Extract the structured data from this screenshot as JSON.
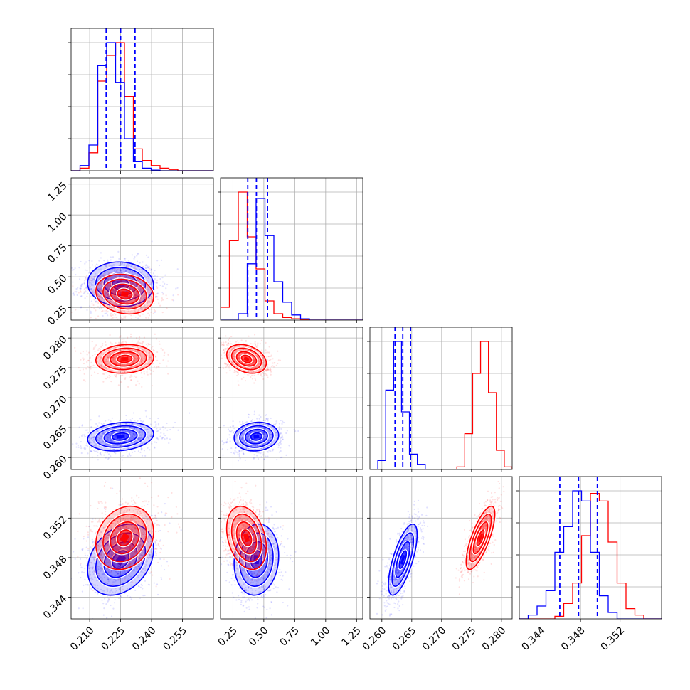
{
  "chart_data": {
    "type": "corner",
    "grid": true,
    "colors": {
      "blue": "#0000ff",
      "red": "#ff0000",
      "grid": "#b0b0b0",
      "axes": "#000000"
    },
    "params": [
      {
        "id": "p1",
        "range": [
          0.201,
          0.27
        ],
        "ticks": [
          "0.210",
          "0.225",
          "0.240",
          "0.255"
        ],
        "tick_values": [
          0.21,
          0.225,
          0.24,
          0.255
        ]
      },
      {
        "id": "p2",
        "range": [
          0.15,
          1.3
        ],
        "ticks": [
          "0.25",
          "0.50",
          "0.75",
          "1.00",
          "1.25"
        ],
        "tick_values": [
          0.25,
          0.5,
          0.75,
          1.0,
          1.25
        ]
      },
      {
        "id": "p3",
        "range": [
          0.258,
          0.2818
        ],
        "ticks": [
          "0.260",
          "0.265",
          "0.270",
          "0.275",
          "0.280"
        ],
        "tick_values": [
          0.26,
          0.265,
          0.27,
          0.275,
          0.28
        ]
      },
      {
        "id": "p4",
        "range": [
          0.3418,
          0.3562
        ],
        "ticks": [
          "0.344",
          "0.348",
          "0.352"
        ],
        "tick_values": [
          0.344,
          0.348,
          0.352
        ]
      }
    ],
    "series": [
      {
        "color": "blue",
        "quantiles": [
          [
            0.218,
            0.225,
            0.232
          ],
          [
            0.37,
            0.44,
            0.53
          ],
          [
            0.2622,
            0.2635,
            0.2648
          ],
          [
            0.3459,
            0.3478,
            0.3497
          ]
        ],
        "histograms": [
          [
            0.0,
            0.04,
            0.2,
            0.82,
            1.0,
            0.69,
            0.25,
            0.07,
            0.02,
            0.005,
            0.0,
            0.0,
            0.0,
            0.0,
            0.0,
            0.0
          ],
          [
            0.0,
            0.0,
            0.05,
            0.44,
            0.95,
            0.66,
            0.3,
            0.14,
            0.04,
            0.01,
            0.0,
            0.0,
            0.0,
            0.0,
            0.0,
            0.0
          ],
          [
            0.0,
            0.07,
            0.62,
            1.0,
            0.45,
            0.12,
            0.04,
            0.0,
            0.0,
            0.0,
            0.0,
            0.0,
            0.0,
            0.0,
            0.0,
            0.0,
            0.0,
            0.0
          ],
          [
            0.0,
            0.03,
            0.1,
            0.22,
            0.52,
            0.72,
            1.0,
            0.92,
            0.52,
            0.18,
            0.05,
            0.0,
            0.0,
            0.0,
            0.0,
            0.0
          ]
        ],
        "corr": {
          "0-1": -0.05,
          "0-2": 0.2,
          "0-3": 0.3,
          "1-2": 0.1,
          "1-3": 0.1,
          "2-3": 0.7
        },
        "sigma": [
          0.008,
          0.09,
          0.0012,
          0.0018
        ]
      },
      {
        "color": "red",
        "quantiles": [
          [
            0.22,
            0.227,
            0.234
          ],
          [
            0.3,
            0.36,
            0.44
          ],
          [
            0.2755,
            0.2765,
            0.2775
          ],
          [
            0.3484,
            0.35,
            0.3516
          ]
        ],
        "histograms": [
          [
            0.0,
            0.02,
            0.14,
            0.7,
            0.9,
            1.0,
            0.58,
            0.17,
            0.08,
            0.04,
            0.02,
            0.01,
            0.0,
            0.0,
            0.0,
            0.0
          ],
          [
            0.1,
            0.62,
            1.0,
            0.65,
            0.4,
            0.15,
            0.05,
            0.02,
            0.01,
            0.005,
            0.0,
            0.0,
            0.0,
            0.0,
            0.0,
            0.0
          ],
          [
            0.0,
            0.0,
            0.0,
            0.0,
            0.0,
            0.0,
            0.0,
            0.0,
            0.0,
            0.0,
            0.0,
            0.02,
            0.28,
            0.75,
            1.0,
            0.6,
            0.15,
            0.02
          ],
          [
            0.0,
            0.0,
            0.0,
            0.0,
            0.02,
            0.12,
            0.28,
            0.65,
            0.98,
            0.92,
            0.6,
            0.28,
            0.08,
            0.03,
            0.0,
            0.0
          ]
        ],
        "corr": {
          "0-1": -0.15,
          "0-2": 0.1,
          "0-3": 0.2,
          "1-2": -0.3,
          "1-3": -0.3,
          "2-3": 0.75
        },
        "sigma": [
          0.007,
          0.08,
          0.0012,
          0.0016
        ]
      }
    ]
  }
}
